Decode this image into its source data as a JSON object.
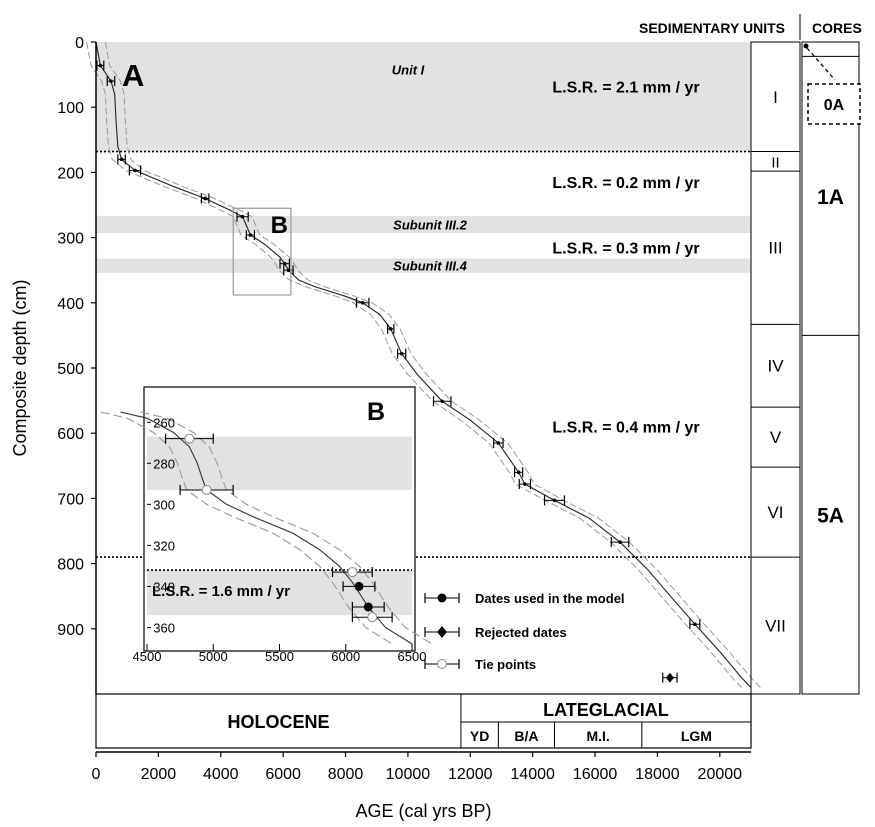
{
  "chart_data": {
    "type": "scatter",
    "main": {
      "xlabel": "AGE (cal yrs BP)",
      "ylabel": "Composite depth (cm)",
      "xlim": [
        0,
        21000
      ],
      "ylim": [
        0,
        1000
      ],
      "xticks": [
        "0",
        "2000",
        "4000",
        "6000",
        "8000",
        "10000",
        "12000",
        "14000",
        "16000",
        "18000",
        "20000"
      ],
      "yticks": [
        "0",
        "100",
        "200",
        "300",
        "400",
        "500",
        "600",
        "700",
        "800",
        "900"
      ],
      "panel_label": "A",
      "box_label": "B",
      "lsr_labels": [
        {
          "text": "L.S.R. = 2.1 mm / yr",
          "depth": 68
        },
        {
          "text": "L.S.R. = 0.2 mm / yr",
          "depth": 215
        },
        {
          "text": "L.S.R. = 0.3 mm / yr",
          "depth": 315
        },
        {
          "text": "L.S.R. = 0.4 mm / yr",
          "depth": 590
        }
      ],
      "shaded_units": [
        {
          "label": "Unit I",
          "top": 0,
          "bottom": 168
        },
        {
          "label": "Subunit III.2",
          "top": 267,
          "bottom": 293
        },
        {
          "label": "Subunit III.4",
          "top": 332,
          "bottom": 354
        }
      ],
      "dotted_lines_depth": [
        168,
        790
      ],
      "dates": [
        {
          "age": 140,
          "depth": 36,
          "err": 110
        },
        {
          "age": 480,
          "depth": 60,
          "err": 120
        },
        {
          "age": 820,
          "depth": 180,
          "err": 120
        },
        {
          "age": 1250,
          "depth": 197,
          "err": 180
        },
        {
          "age": 3500,
          "depth": 240,
          "err": 120
        },
        {
          "age": 4700,
          "depth": 268,
          "err": 180
        },
        {
          "age": 4950,
          "depth": 296,
          "err": 130
        },
        {
          "age": 6050,
          "depth": 340,
          "err": 150
        },
        {
          "age": 6170,
          "depth": 350,
          "err": 150
        },
        {
          "age": 8550,
          "depth": 400,
          "err": 200
        },
        {
          "age": 9450,
          "depth": 440,
          "err": 100
        },
        {
          "age": 9800,
          "depth": 478,
          "err": 130
        },
        {
          "age": 11100,
          "depth": 551,
          "err": 280
        },
        {
          "age": 12900,
          "depth": 615,
          "err": 150
        },
        {
          "age": 13550,
          "depth": 660,
          "err": 130
        },
        {
          "age": 13750,
          "depth": 678,
          "err": 180
        },
        {
          "age": 14700,
          "depth": 703,
          "err": 320
        },
        {
          "age": 16800,
          "depth": 767,
          "err": 280
        },
        {
          "age": 19200,
          "depth": 893,
          "err": 160
        }
      ],
      "rejected": [
        {
          "age": 18400,
          "depth": 975,
          "err": 230
        }
      ],
      "model": [
        [
          0,
          0
        ],
        [
          140,
          36
        ],
        [
          480,
          60
        ],
        [
          600,
          80
        ],
        [
          640,
          120
        ],
        [
          700,
          160
        ],
        [
          820,
          180
        ],
        [
          1250,
          197
        ],
        [
          2500,
          222
        ],
        [
          3500,
          240
        ],
        [
          4300,
          258
        ],
        [
          4700,
          268
        ],
        [
          4950,
          296
        ],
        [
          5400,
          310
        ],
        [
          5900,
          330
        ],
        [
          6050,
          340
        ],
        [
          6170,
          350
        ],
        [
          6500,
          365
        ],
        [
          7000,
          375
        ],
        [
          8000,
          390
        ],
        [
          8550,
          400
        ],
        [
          9100,
          418
        ],
        [
          9450,
          440
        ],
        [
          9800,
          478
        ],
        [
          10300,
          510
        ],
        [
          11100,
          551
        ],
        [
          12000,
          580
        ],
        [
          12900,
          615
        ],
        [
          13550,
          660
        ],
        [
          13750,
          678
        ],
        [
          14700,
          703
        ],
        [
          15800,
          730
        ],
        [
          16800,
          767
        ],
        [
          17700,
          810
        ],
        [
          18600,
          860
        ],
        [
          19200,
          893
        ],
        [
          20000,
          935
        ],
        [
          20700,
          975
        ],
        [
          21000,
          990
        ]
      ],
      "model_offset_age": 300
    },
    "inset": {
      "label": "B",
      "xlim": [
        4500,
        6500
      ],
      "ylim": [
        255,
        370
      ],
      "xticks": [
        "4500",
        "5000",
        "5500",
        "6000",
        "6500"
      ],
      "yticks": [
        "260",
        "280",
        "300",
        "320",
        "340",
        "360"
      ],
      "lsr_text": "L.S.R. = 1.6 mm / yr",
      "shaded": [
        [
          267,
          293
        ],
        [
          332,
          354
        ]
      ],
      "dates": [
        {
          "age": 6100,
          "depth": 340,
          "err": 120
        },
        {
          "age": 6170,
          "depth": 350,
          "err": 120
        }
      ],
      "tie_points": [
        {
          "age": 4820,
          "depth": 268,
          "err": 180
        },
        {
          "age": 4950,
          "depth": 293,
          "err": 200
        },
        {
          "age": 6050,
          "depth": 333,
          "err": 150
        },
        {
          "age": 6200,
          "depth": 355,
          "err": 150
        }
      ],
      "model": [
        [
          4300,
          255
        ],
        [
          4500,
          258
        ],
        [
          4700,
          265
        ],
        [
          4820,
          272
        ],
        [
          4880,
          280
        ],
        [
          4920,
          288
        ],
        [
          4950,
          293
        ],
        [
          5100,
          300
        ],
        [
          5300,
          306
        ],
        [
          5600,
          314
        ],
        [
          5800,
          322
        ],
        [
          5950,
          330
        ],
        [
          6050,
          338
        ],
        [
          6170,
          350
        ],
        [
          6300,
          360
        ],
        [
          6500,
          368
        ]
      ],
      "model_offset_age": 150
    },
    "legend": [
      {
        "label": "Dates used in the model",
        "marker": "filled-circle"
      },
      {
        "label": "Rejected dates",
        "marker": "diamond"
      },
      {
        "label": "Tie points",
        "marker": "open-circle"
      }
    ],
    "sedimentary_units": {
      "header": "SEDIMENTARY UNITS",
      "units": [
        {
          "label": "I",
          "top": 0,
          "bottom": 168
        },
        {
          "label": "II",
          "top": 168,
          "bottom": 198
        },
        {
          "label": "III",
          "top": 198,
          "bottom": 433
        },
        {
          "label": "IV",
          "top": 433,
          "bottom": 560
        },
        {
          "label": "V",
          "top": 560,
          "bottom": 652
        },
        {
          "label": "VI",
          "top": 652,
          "bottom": 790
        },
        {
          "label": "VII",
          "top": 790,
          "bottom": 1000
        }
      ]
    },
    "cores": {
      "header": "CORES",
      "items": [
        {
          "label": "0A",
          "top": 0,
          "bottom": 22,
          "dashed": true
        },
        {
          "label": "1A",
          "top": 22,
          "bottom": 450
        },
        {
          "label": "5A",
          "top": 450,
          "bottom": 1000
        }
      ]
    },
    "chronology": {
      "holocene": "HOLOCENE",
      "lateglacial": "LATEGLACIAL",
      "holocene_end_age": 11700,
      "periods": [
        {
          "label": "YD",
          "from": 11700,
          "to": 12900
        },
        {
          "label": "B/A",
          "from": 12900,
          "to": 14700
        },
        {
          "label": "M.I.",
          "from": 14700,
          "to": 17500
        },
        {
          "label": "LGM",
          "from": 17500,
          "to": 21000
        }
      ]
    }
  }
}
